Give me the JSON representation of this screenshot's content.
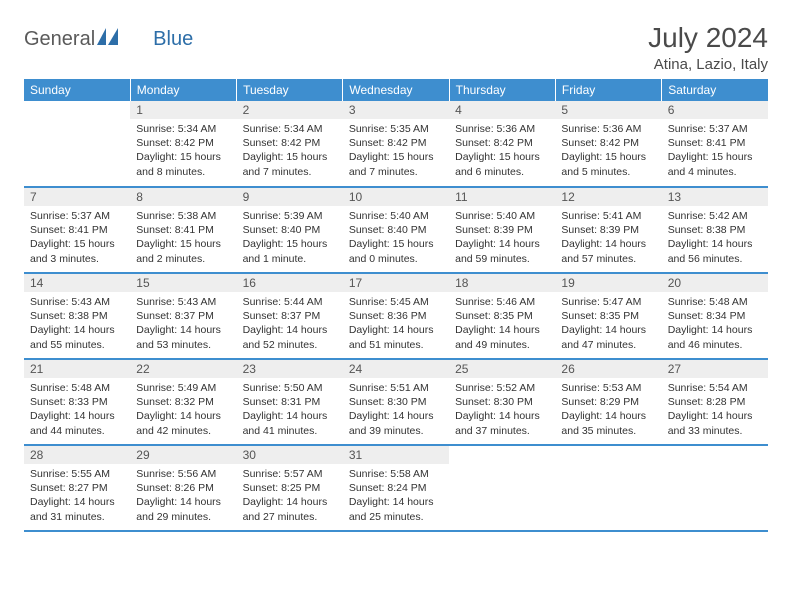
{
  "logo": {
    "word1": "General",
    "word2": "Blue"
  },
  "title": "July 2024",
  "location": "Atina, Lazio, Italy",
  "colors": {
    "header_bg": "#3e8ecf",
    "header_text": "#ffffff",
    "daynum_bg": "#eeeeee",
    "body_bg": "#ffffff",
    "text": "#333333",
    "rule": "#3e8ecf"
  },
  "weekdays": [
    "Sunday",
    "Monday",
    "Tuesday",
    "Wednesday",
    "Thursday",
    "Friday",
    "Saturday"
  ],
  "first_weekday_index": 1,
  "days": [
    {
      "n": 1,
      "sunrise": "5:34 AM",
      "sunset": "8:42 PM",
      "daylight": "15 hours and 8 minutes."
    },
    {
      "n": 2,
      "sunrise": "5:34 AM",
      "sunset": "8:42 PM",
      "daylight": "15 hours and 7 minutes."
    },
    {
      "n": 3,
      "sunrise": "5:35 AM",
      "sunset": "8:42 PM",
      "daylight": "15 hours and 7 minutes."
    },
    {
      "n": 4,
      "sunrise": "5:36 AM",
      "sunset": "8:42 PM",
      "daylight": "15 hours and 6 minutes."
    },
    {
      "n": 5,
      "sunrise": "5:36 AM",
      "sunset": "8:42 PM",
      "daylight": "15 hours and 5 minutes."
    },
    {
      "n": 6,
      "sunrise": "5:37 AM",
      "sunset": "8:41 PM",
      "daylight": "15 hours and 4 minutes."
    },
    {
      "n": 7,
      "sunrise": "5:37 AM",
      "sunset": "8:41 PM",
      "daylight": "15 hours and 3 minutes."
    },
    {
      "n": 8,
      "sunrise": "5:38 AM",
      "sunset": "8:41 PM",
      "daylight": "15 hours and 2 minutes."
    },
    {
      "n": 9,
      "sunrise": "5:39 AM",
      "sunset": "8:40 PM",
      "daylight": "15 hours and 1 minute."
    },
    {
      "n": 10,
      "sunrise": "5:40 AM",
      "sunset": "8:40 PM",
      "daylight": "15 hours and 0 minutes."
    },
    {
      "n": 11,
      "sunrise": "5:40 AM",
      "sunset": "8:39 PM",
      "daylight": "14 hours and 59 minutes."
    },
    {
      "n": 12,
      "sunrise": "5:41 AM",
      "sunset": "8:39 PM",
      "daylight": "14 hours and 57 minutes."
    },
    {
      "n": 13,
      "sunrise": "5:42 AM",
      "sunset": "8:38 PM",
      "daylight": "14 hours and 56 minutes."
    },
    {
      "n": 14,
      "sunrise": "5:43 AM",
      "sunset": "8:38 PM",
      "daylight": "14 hours and 55 minutes."
    },
    {
      "n": 15,
      "sunrise": "5:43 AM",
      "sunset": "8:37 PM",
      "daylight": "14 hours and 53 minutes."
    },
    {
      "n": 16,
      "sunrise": "5:44 AM",
      "sunset": "8:37 PM",
      "daylight": "14 hours and 52 minutes."
    },
    {
      "n": 17,
      "sunrise": "5:45 AM",
      "sunset": "8:36 PM",
      "daylight": "14 hours and 51 minutes."
    },
    {
      "n": 18,
      "sunrise": "5:46 AM",
      "sunset": "8:35 PM",
      "daylight": "14 hours and 49 minutes."
    },
    {
      "n": 19,
      "sunrise": "5:47 AM",
      "sunset": "8:35 PM",
      "daylight": "14 hours and 47 minutes."
    },
    {
      "n": 20,
      "sunrise": "5:48 AM",
      "sunset": "8:34 PM",
      "daylight": "14 hours and 46 minutes."
    },
    {
      "n": 21,
      "sunrise": "5:48 AM",
      "sunset": "8:33 PM",
      "daylight": "14 hours and 44 minutes."
    },
    {
      "n": 22,
      "sunrise": "5:49 AM",
      "sunset": "8:32 PM",
      "daylight": "14 hours and 42 minutes."
    },
    {
      "n": 23,
      "sunrise": "5:50 AM",
      "sunset": "8:31 PM",
      "daylight": "14 hours and 41 minutes."
    },
    {
      "n": 24,
      "sunrise": "5:51 AM",
      "sunset": "8:30 PM",
      "daylight": "14 hours and 39 minutes."
    },
    {
      "n": 25,
      "sunrise": "5:52 AM",
      "sunset": "8:30 PM",
      "daylight": "14 hours and 37 minutes."
    },
    {
      "n": 26,
      "sunrise": "5:53 AM",
      "sunset": "8:29 PM",
      "daylight": "14 hours and 35 minutes."
    },
    {
      "n": 27,
      "sunrise": "5:54 AM",
      "sunset": "8:28 PM",
      "daylight": "14 hours and 33 minutes."
    },
    {
      "n": 28,
      "sunrise": "5:55 AM",
      "sunset": "8:27 PM",
      "daylight": "14 hours and 31 minutes."
    },
    {
      "n": 29,
      "sunrise": "5:56 AM",
      "sunset": "8:26 PM",
      "daylight": "14 hours and 29 minutes."
    },
    {
      "n": 30,
      "sunrise": "5:57 AM",
      "sunset": "8:25 PM",
      "daylight": "14 hours and 27 minutes."
    },
    {
      "n": 31,
      "sunrise": "5:58 AM",
      "sunset": "8:24 PM",
      "daylight": "14 hours and 25 minutes."
    }
  ]
}
